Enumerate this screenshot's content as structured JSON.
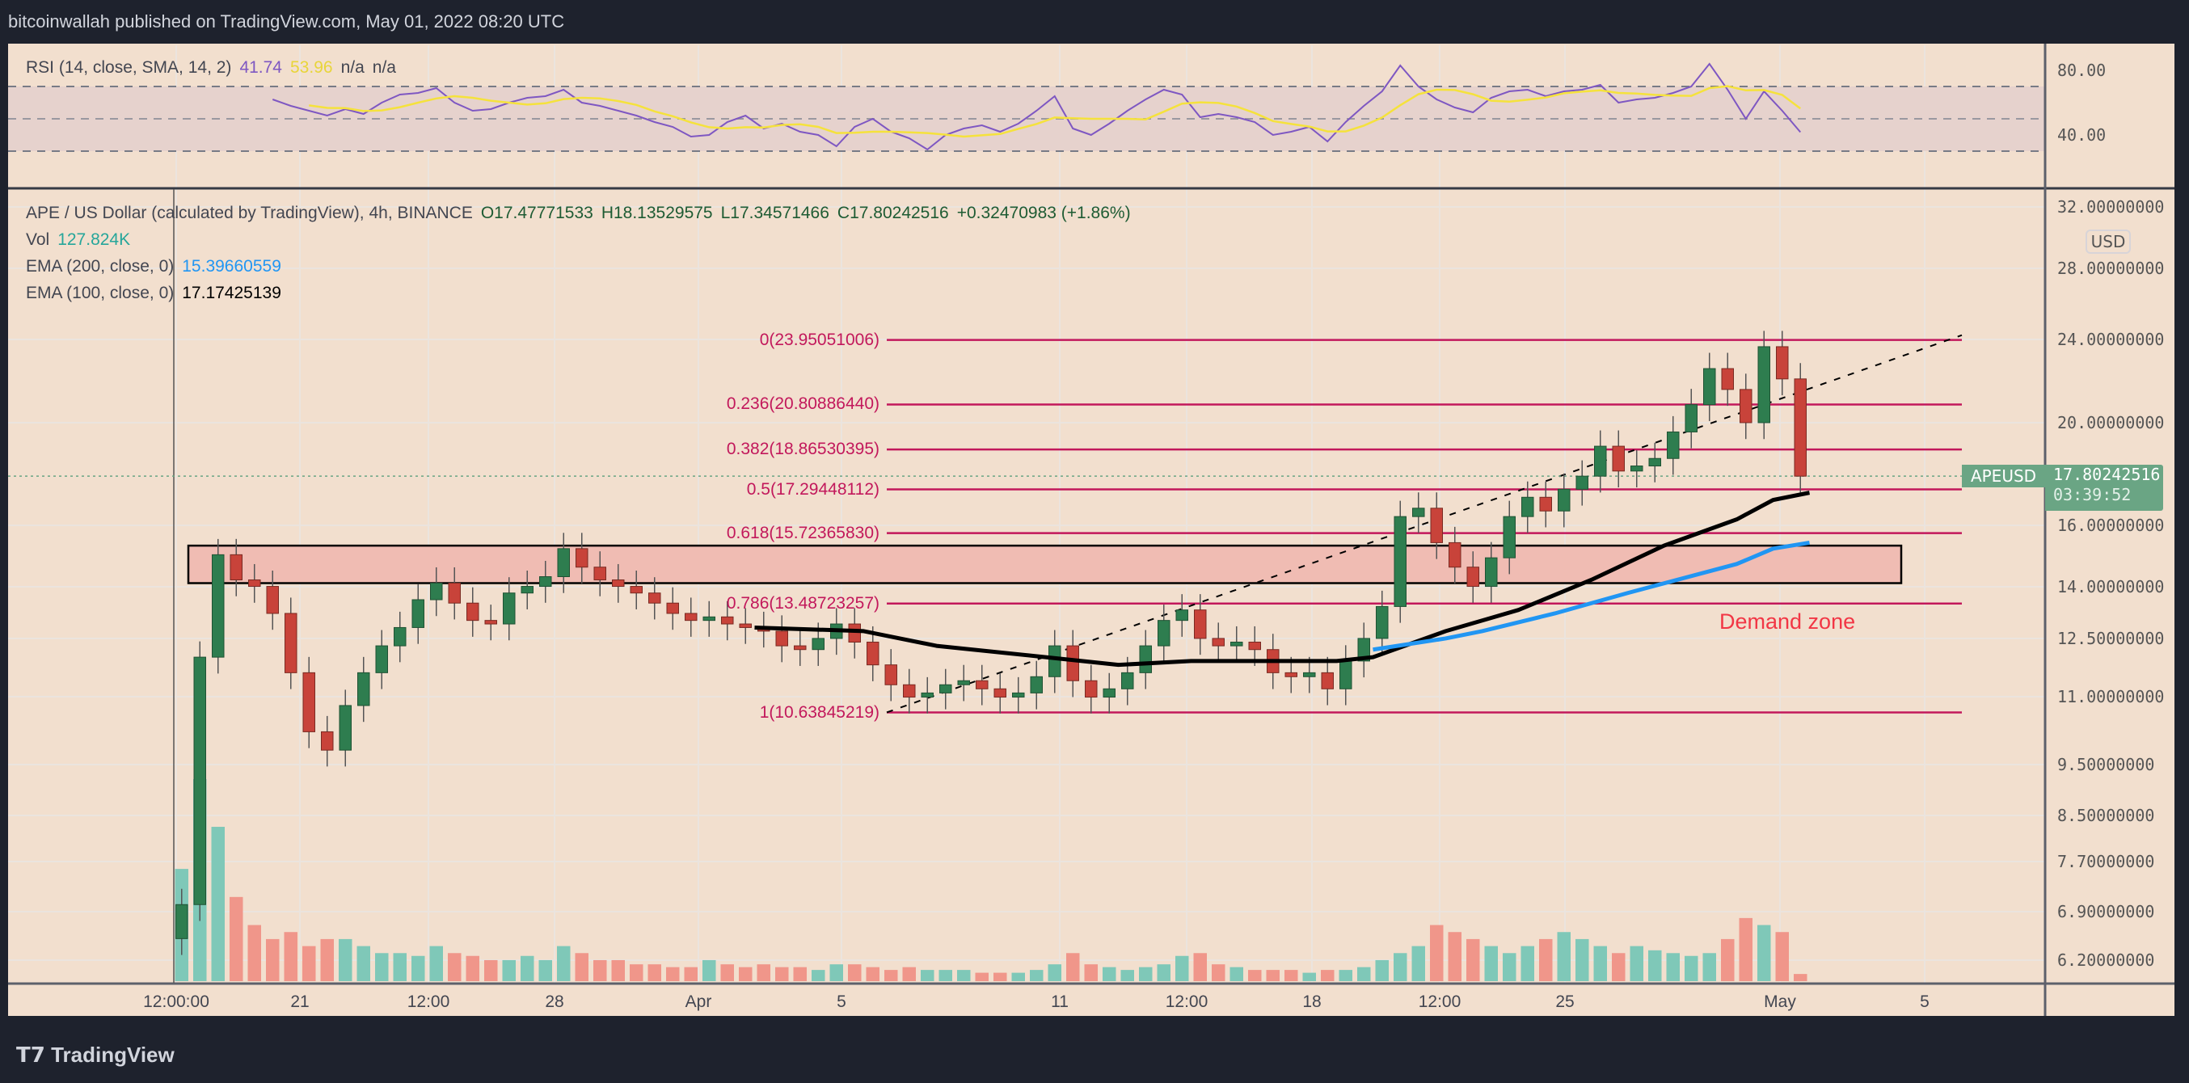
{
  "header": {
    "published": "bitcoinwallah published on TradingView.com, May 01, 2022 08:20 UTC"
  },
  "rsi_legend": {
    "label": "RSI (14, close, SMA, 14, 2)",
    "rsi_value": "41.74",
    "sma_value": "53.96",
    "na1": "n/a",
    "na2": "n/a"
  },
  "legend": {
    "symbol": "APE / US Dollar (calculated by TradingView), 4h, BINANCE",
    "open": "O17.47771533",
    "high": "H18.13529575",
    "low": "L17.34571466",
    "close": "C17.80242516",
    "change": "+0.32470983 (+1.86%)",
    "vol_label": "Vol",
    "vol_value": "127.824K",
    "ema200_label": "EMA (200, close, 0)",
    "ema200_value": "15.39660559",
    "ema100_label": "EMA (100, close, 0)",
    "ema100_value": "17.17425139"
  },
  "price_axis": {
    "currency": "USD",
    "symbol_tag": "APEUSD",
    "last_price": "17.80242516",
    "countdown": "03:39:52"
  },
  "footer": {
    "logo": "TradingView"
  },
  "colors": {
    "up": "#2e7d4f",
    "down": "#c8433a",
    "vol_up": "#7fc8b8",
    "vol_down": "#f0968a",
    "ema100": "#000000",
    "ema200": "#2196f3",
    "fib": "#c2185b",
    "rsi": "#7e57c2",
    "rsi_sma": "#f5e23c",
    "demand": "#f23645",
    "price_tag": "#6aa584"
  },
  "chart_data": [
    {
      "type": "candlestick",
      "symbol": "APEUSD",
      "yscale": "log",
      "ylim": [
        6.2,
        32
      ],
      "y_ticks": [
        "32.00000000",
        "28.00000000",
        "24.00000000",
        "20.00000000",
        "16.00000000",
        "14.00000000",
        "12.50000000",
        "11.00000000",
        "9.50000000",
        "8.50000000",
        "7.70000000",
        "6.90000000",
        "6.20000000"
      ],
      "x_ticks": [
        "12:00:00",
        "21",
        "12:00",
        "28",
        "Apr",
        "5",
        "11",
        "12:00",
        "18",
        "12:00",
        "25",
        "May",
        "5"
      ],
      "closes": [
        7.0,
        12.0,
        15.0,
        14.2,
        14.0,
        13.2,
        11.6,
        10.2,
        9.8,
        10.8,
        11.6,
        12.3,
        12.8,
        13.6,
        14.1,
        13.5,
        13.0,
        12.9,
        13.8,
        14.0,
        14.3,
        15.2,
        14.6,
        14.2,
        14.0,
        13.8,
        13.5,
        13.2,
        13.0,
        13.1,
        12.9,
        12.8,
        12.7,
        12.3,
        12.2,
        12.5,
        12.9,
        12.4,
        11.8,
        11.3,
        11.0,
        11.1,
        11.3,
        11.4,
        11.2,
        11.0,
        11.1,
        11.5,
        12.3,
        11.4,
        11.0,
        11.2,
        11.6,
        12.3,
        13.0,
        13.3,
        12.5,
        12.3,
        12.4,
        12.2,
        11.6,
        11.5,
        11.6,
        11.2,
        11.9,
        12.5,
        13.4,
        16.3,
        16.6,
        15.4,
        14.6,
        14.0,
        14.9,
        16.3,
        17.0,
        16.5,
        17.3,
        17.8,
        19.0,
        18.0,
        18.2,
        18.5,
        19.6,
        20.8,
        22.5,
        21.5,
        20.0,
        23.6,
        22.0,
        17.8
      ],
      "volume_k": [
        2000,
        3600,
        2750,
        1500,
        1000,
        750,
        875,
        625,
        750,
        750,
        625,
        500,
        500,
        450,
        625,
        500,
        450,
        375,
        375,
        450,
        375,
        625,
        500,
        375,
        375,
        300,
        300,
        250,
        250,
        375,
        300,
        250,
        300,
        250,
        250,
        200,
        300,
        300,
        250,
        200,
        250,
        200,
        200,
        200,
        150,
        150,
        150,
        200,
        300,
        500,
        300,
        250,
        200,
        250,
        300,
        450,
        500,
        300,
        250,
        200,
        200,
        200,
        150,
        200,
        200,
        250,
        375,
        500,
        625,
        1000,
        875,
        750,
        625,
        500,
        625,
        750,
        875,
        750,
        625,
        500,
        625,
        550,
        500,
        450,
        500,
        750,
        1125,
        1000,
        875,
        128
      ],
      "ema100": [
        [
          "Apr 2",
          12.8
        ],
        [
          "Apr 5",
          12.7
        ],
        [
          "Apr 7",
          12.3
        ],
        [
          "Apr 10",
          12.0
        ],
        [
          "Apr 12",
          11.8
        ],
        [
          "Apr 14",
          11.9
        ],
        [
          "Apr 16",
          11.9
        ],
        [
          "Apr 18",
          11.9
        ],
        [
          "Apr 19",
          12.0
        ],
        [
          "Apr 21",
          12.7
        ],
        [
          "Apr 23",
          13.3
        ],
        [
          "Apr 25",
          14.2
        ],
        [
          "Apr 27",
          15.3
        ],
        [
          "Apr 29",
          16.2
        ],
        [
          "Apr 30",
          16.9
        ],
        [
          "May 1",
          17.17
        ]
      ],
      "ema200": [
        [
          "Apr 19",
          12.2
        ],
        [
          "Apr 21",
          12.5
        ],
        [
          "Apr 22",
          12.7
        ],
        [
          "Apr 24",
          13.2
        ],
        [
          "Apr 26",
          13.8
        ],
        [
          "Apr 29",
          14.7
        ],
        [
          "Apr 30",
          15.2
        ],
        [
          "May 1",
          15.4
        ]
      ],
      "fib_levels": [
        {
          "ratio": "0",
          "price": "23.95051006",
          "label": "0(23.95051006)"
        },
        {
          "ratio": "0.236",
          "price": "20.80886440",
          "label": "0.236(20.80886440)"
        },
        {
          "ratio": "0.382",
          "price": "18.86530395",
          "label": "0.382(18.86530395)"
        },
        {
          "ratio": "0.5",
          "price": "17.29448112",
          "label": "0.5(17.29448112)"
        },
        {
          "ratio": "0.618",
          "price": "15.72365830",
          "label": "0.618(15.72365830)"
        },
        {
          "ratio": "0.786",
          "price": "13.48723257",
          "label": "0.786(13.48723257)"
        },
        {
          "ratio": "1",
          "price": "10.63845219",
          "label": "1(10.63845219)"
        }
      ],
      "demand_zone": {
        "label": "Demand zone",
        "low": 14.1,
        "high": 15.3
      }
    },
    {
      "type": "line",
      "name": "RSI",
      "ylim": [
        20,
        95
      ],
      "y_ticks": [
        "80.00",
        "40.00"
      ],
      "bands": [
        70,
        50,
        30
      ],
      "rsi": [
        62,
        58,
        55,
        52,
        56,
        53,
        60,
        65,
        66,
        69,
        60,
        55,
        56,
        60,
        63,
        64,
        68,
        60,
        58,
        55,
        52,
        48,
        45,
        39,
        40,
        48,
        52,
        44,
        47,
        42,
        40,
        33,
        45,
        50,
        42,
        38,
        31,
        40,
        44,
        46,
        42,
        47,
        55,
        64,
        44,
        40,
        47,
        55,
        62,
        68,
        65,
        51,
        53,
        51,
        48,
        40,
        42,
        45,
        36,
        48,
        58,
        67,
        83,
        70,
        62,
        57,
        54,
        63,
        67,
        68,
        64,
        67,
        68,
        71,
        60,
        62,
        63,
        66,
        70,
        84,
        68,
        50,
        67,
        55,
        41.74
      ]
    }
  ]
}
